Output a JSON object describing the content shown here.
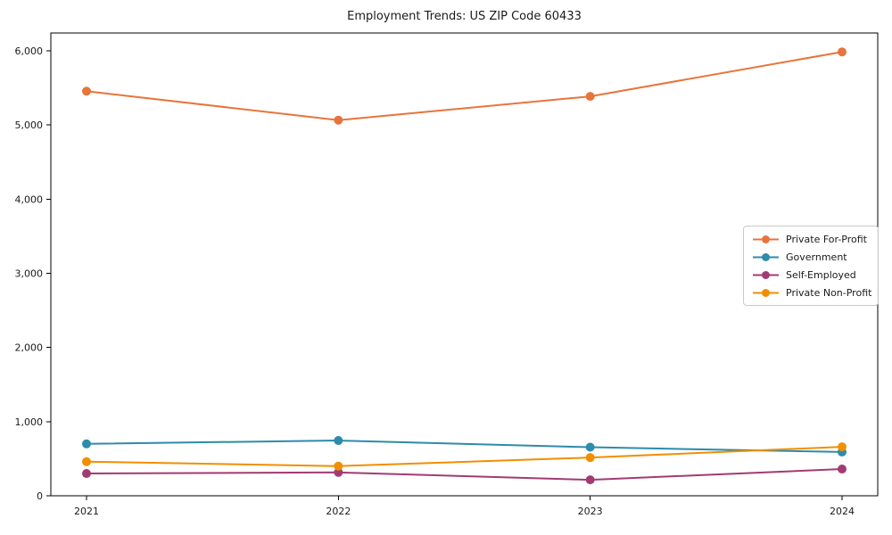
{
  "figure": {
    "title": "Employment Trends: US ZIP Code 60433",
    "background": "#ffffff"
  },
  "chart_data": {
    "type": "line",
    "title": "Employment Trends: US ZIP Code 60433",
    "x": [
      "2021",
      "2022",
      "2023",
      "2024"
    ],
    "series": [
      {
        "name": "Private For-Profit",
        "color": "#E8743B",
        "values": [
          5455,
          5065,
          5385,
          5985
        ]
      },
      {
        "name": "Government",
        "color": "#2E8BAB",
        "values": [
          700,
          745,
          655,
          590
        ]
      },
      {
        "name": "Self-Employed",
        "color": "#A23B72",
        "values": [
          300,
          315,
          215,
          360
        ]
      },
      {
        "name": "Private Non-Profit",
        "color": "#F18F01",
        "values": [
          460,
          400,
          515,
          660
        ]
      }
    ],
    "xlabel": "",
    "ylabel": "",
    "ylim": [
      0,
      6240
    ],
    "yticks": [
      0,
      1000,
      2000,
      3000,
      4000,
      5000,
      6000
    ],
    "ytick_labels": [
      "0",
      "1,000",
      "2,000",
      "3,000",
      "4,000",
      "5,000",
      "6,000"
    ],
    "xtick_labels": [
      "2021",
      "2022",
      "2023",
      "2024"
    ],
    "legend": {
      "position": "center-right",
      "entries": [
        "Private For-Profit",
        "Government",
        "Self-Employed",
        "Private Non-Profit"
      ]
    },
    "grid": false,
    "marker": "o",
    "axis_color": "#000000",
    "text_color": "#1a1a1a"
  }
}
